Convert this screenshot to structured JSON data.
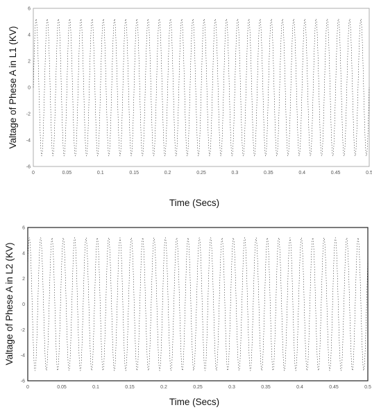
{
  "chart_data": [
    {
      "type": "line",
      "title": "",
      "xlabel": "Time (Secs)",
      "ylabel": "Valtage of Phese A in L1 (KV)",
      "grid": false,
      "legend": "none",
      "series_color": "#000000",
      "x_ticks": [
        "0",
        "0.05",
        "0.1",
        "0.15",
        "0.2",
        "0.25",
        "0.3",
        "0.35",
        "0.4",
        "0.45",
        "0.5"
      ],
      "y_ticks": [
        "-6",
        "-4",
        "-2",
        "0",
        "2",
        "4",
        "6"
      ],
      "xlim": [
        0,
        0.5
      ],
      "ylim": [
        -6,
        6
      ],
      "series": [
        {
          "frequency_hz": 60,
          "amplitude": 5.2,
          "phase_deg": 0
        }
      ]
    },
    {
      "type": "line",
      "title": "",
      "xlabel": "Time (Secs)",
      "ylabel": "Valtage of Phese A in L2 (KV)",
      "grid": false,
      "legend": "none",
      "series_color": "#000000",
      "x_ticks": [
        "0",
        "0.05",
        "0.1",
        "0.15",
        "0.2",
        "0.25",
        "0.3",
        "0.35",
        "0.4",
        "0.45",
        "0.5"
      ],
      "y_ticks": [
        "-6",
        "-4",
        "-2",
        "0",
        "2",
        "4",
        "6"
      ],
      "xlim": [
        0,
        0.5
      ],
      "ylim": [
        -6,
        6
      ],
      "series": [
        {
          "frequency_hz": 60,
          "amplitude": 5.2,
          "phase_deg": 40
        }
      ]
    }
  ]
}
